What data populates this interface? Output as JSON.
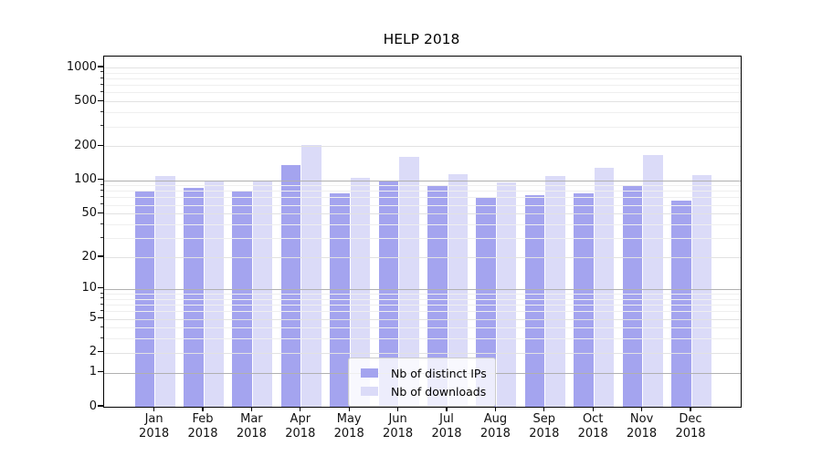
{
  "title": "HELP 2018",
  "chart_data": {
    "type": "bar",
    "title": "HELP 2018",
    "categories": [
      "Jan 2018",
      "Feb 2018",
      "Mar 2018",
      "Apr 2018",
      "May 2018",
      "Jun 2018",
      "Jul 2018",
      "Aug 2018",
      "Sep 2018",
      "Oct 2018",
      "Nov 2018",
      "Dec 2018"
    ],
    "x_tick_top_lines": [
      "Jan",
      "Feb",
      "Mar",
      "Apr",
      "May",
      "Jun",
      "Jul",
      "Aug",
      "Sep",
      "Oct",
      "Nov",
      "Dec"
    ],
    "x_tick_bottom_line": "2018",
    "series": [
      {
        "name": "Nb of distinct IPs",
        "color": "#a4a4ef",
        "values": [
          79,
          85,
          81,
          135,
          76,
          100,
          89,
          70,
          74,
          76,
          88,
          66
        ]
      },
      {
        "name": "Nb of downloads",
        "color": "#dbdbf8",
        "values": [
          109,
          100,
          97,
          205,
          105,
          160,
          112,
          95,
          109,
          130,
          168,
          111
        ]
      }
    ],
    "xlabel": "",
    "ylabel": "",
    "y_axis": {
      "scale": "log10(y+1)",
      "tick_values": [
        1000,
        500,
        200,
        100,
        50,
        20,
        10,
        5,
        2,
        1,
        0
      ],
      "tick_labels": [
        "1000",
        "500",
        "200",
        "100",
        "50",
        "20",
        "10",
        "5",
        "2",
        "1",
        "0"
      ],
      "decade_ticks": [
        1,
        10,
        100
      ],
      "minor_tick_values": [
        3,
        4,
        6,
        7,
        8,
        9,
        30,
        40,
        60,
        70,
        80,
        90,
        300,
        400,
        600,
        700,
        800,
        900
      ],
      "ylim": [
        0,
        1250
      ]
    },
    "grid": true,
    "legend_position": "lower center"
  }
}
